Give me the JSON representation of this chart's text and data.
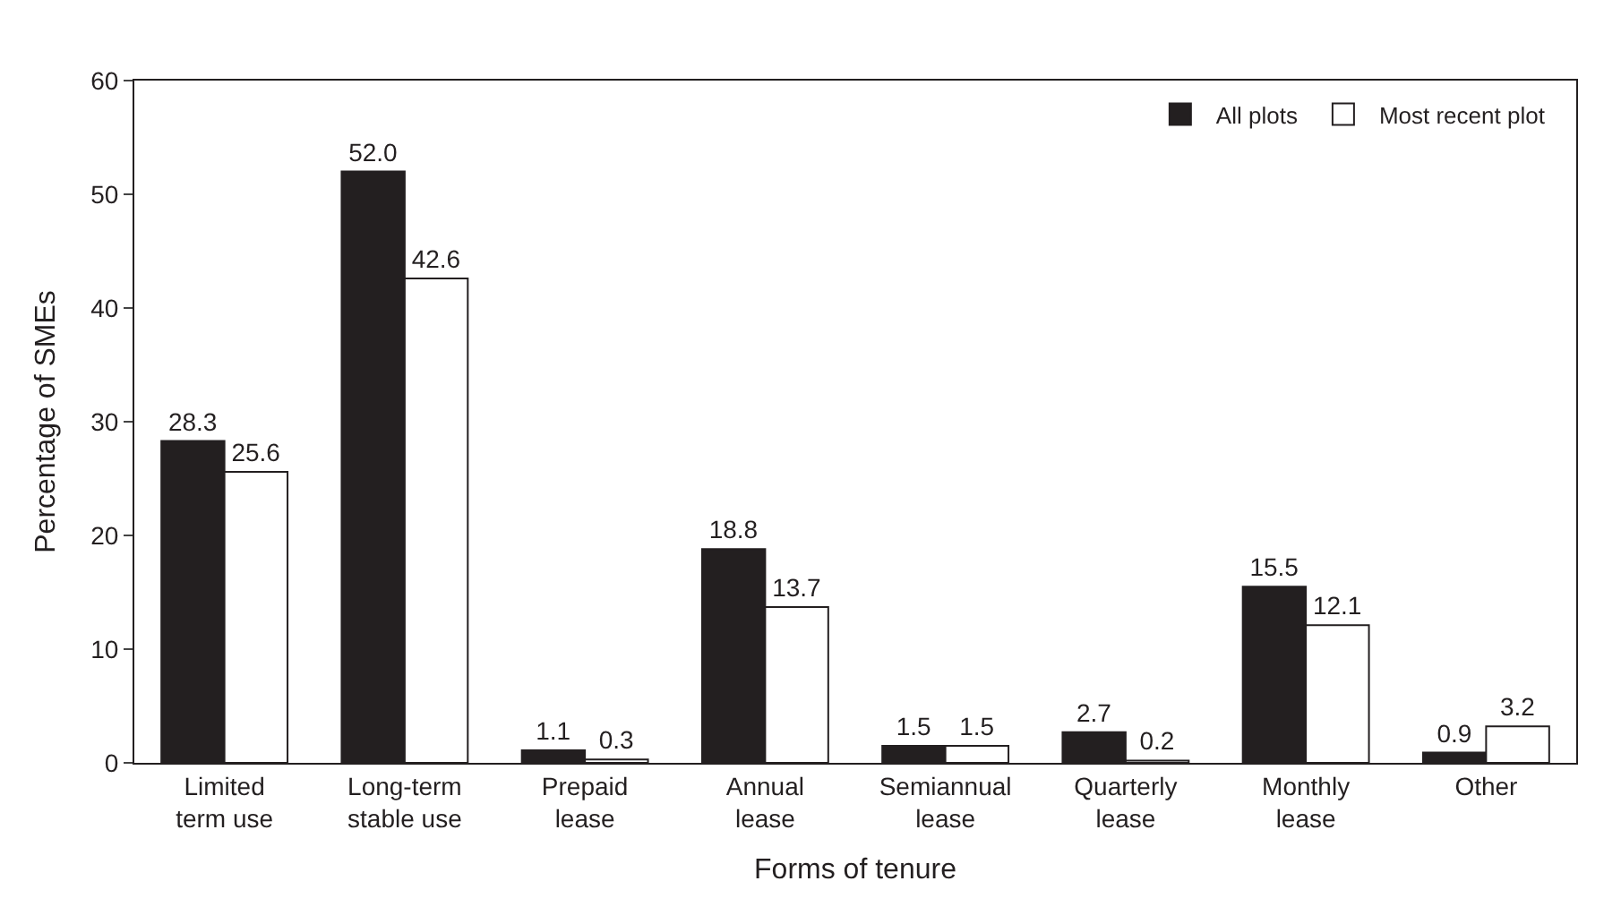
{
  "chart_data": {
    "type": "bar",
    "xlabel": "Forms of tenure",
    "ylabel": "Percentage of SMEs",
    "categories": [
      "Limited\nterm use",
      "Long-term\nstable use",
      "Prepaid\nlease",
      "Annual\nlease",
      "Semiannual\nlease",
      "Quarterly\nlease",
      "Monthly\nlease",
      "Other"
    ],
    "series": [
      {
        "name": "All plots",
        "color": "#231f20",
        "values": [
          28.3,
          52.0,
          1.1,
          18.8,
          1.5,
          2.7,
          15.5,
          0.9
        ],
        "value_labels": [
          "28.3",
          "52.0",
          "1.1",
          "18.8",
          "1.5",
          "2.7",
          "15.5",
          "0.9"
        ]
      },
      {
        "name": "Most recent plot",
        "color": "#ffffff",
        "values": [
          25.6,
          42.6,
          0.3,
          13.7,
          1.5,
          0.2,
          12.1,
          3.2
        ],
        "value_labels": [
          "25.6",
          "42.6",
          "0.3",
          "13.7",
          "1.5",
          "0.2",
          "12.1",
          "3.2"
        ]
      }
    ],
    "ylim": [
      0,
      60
    ],
    "yticks": [
      0,
      10,
      20,
      30,
      40,
      50,
      60
    ],
    "legend": "top right"
  }
}
